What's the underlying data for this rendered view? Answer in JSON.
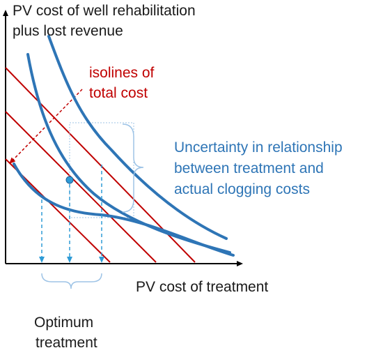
{
  "labels": {
    "y_axis_line1": "PV cost of well rehabilitation",
    "y_axis_line2": "plus lost revenue",
    "x_axis": "PV cost of treatment",
    "isolines_line1": "isolines of",
    "isolines_line2": "total cost",
    "uncertainty_line1": "Uncertainty in relationship",
    "uncertainty_line2": "between treatment and",
    "uncertainty_line3": "actual clogging costs",
    "optimum_line1": "Optimum",
    "optimum_line2": "treatment"
  },
  "colors": {
    "axis": "#000000",
    "isoline": "#c00000",
    "curve": "#2e75b6",
    "bracket": "#9dc3e6",
    "drop_line": "#2e9bd6",
    "text_dark": "#1a1a1a",
    "text_red": "#c00000",
    "text_blue": "#2e75b6"
  }
}
